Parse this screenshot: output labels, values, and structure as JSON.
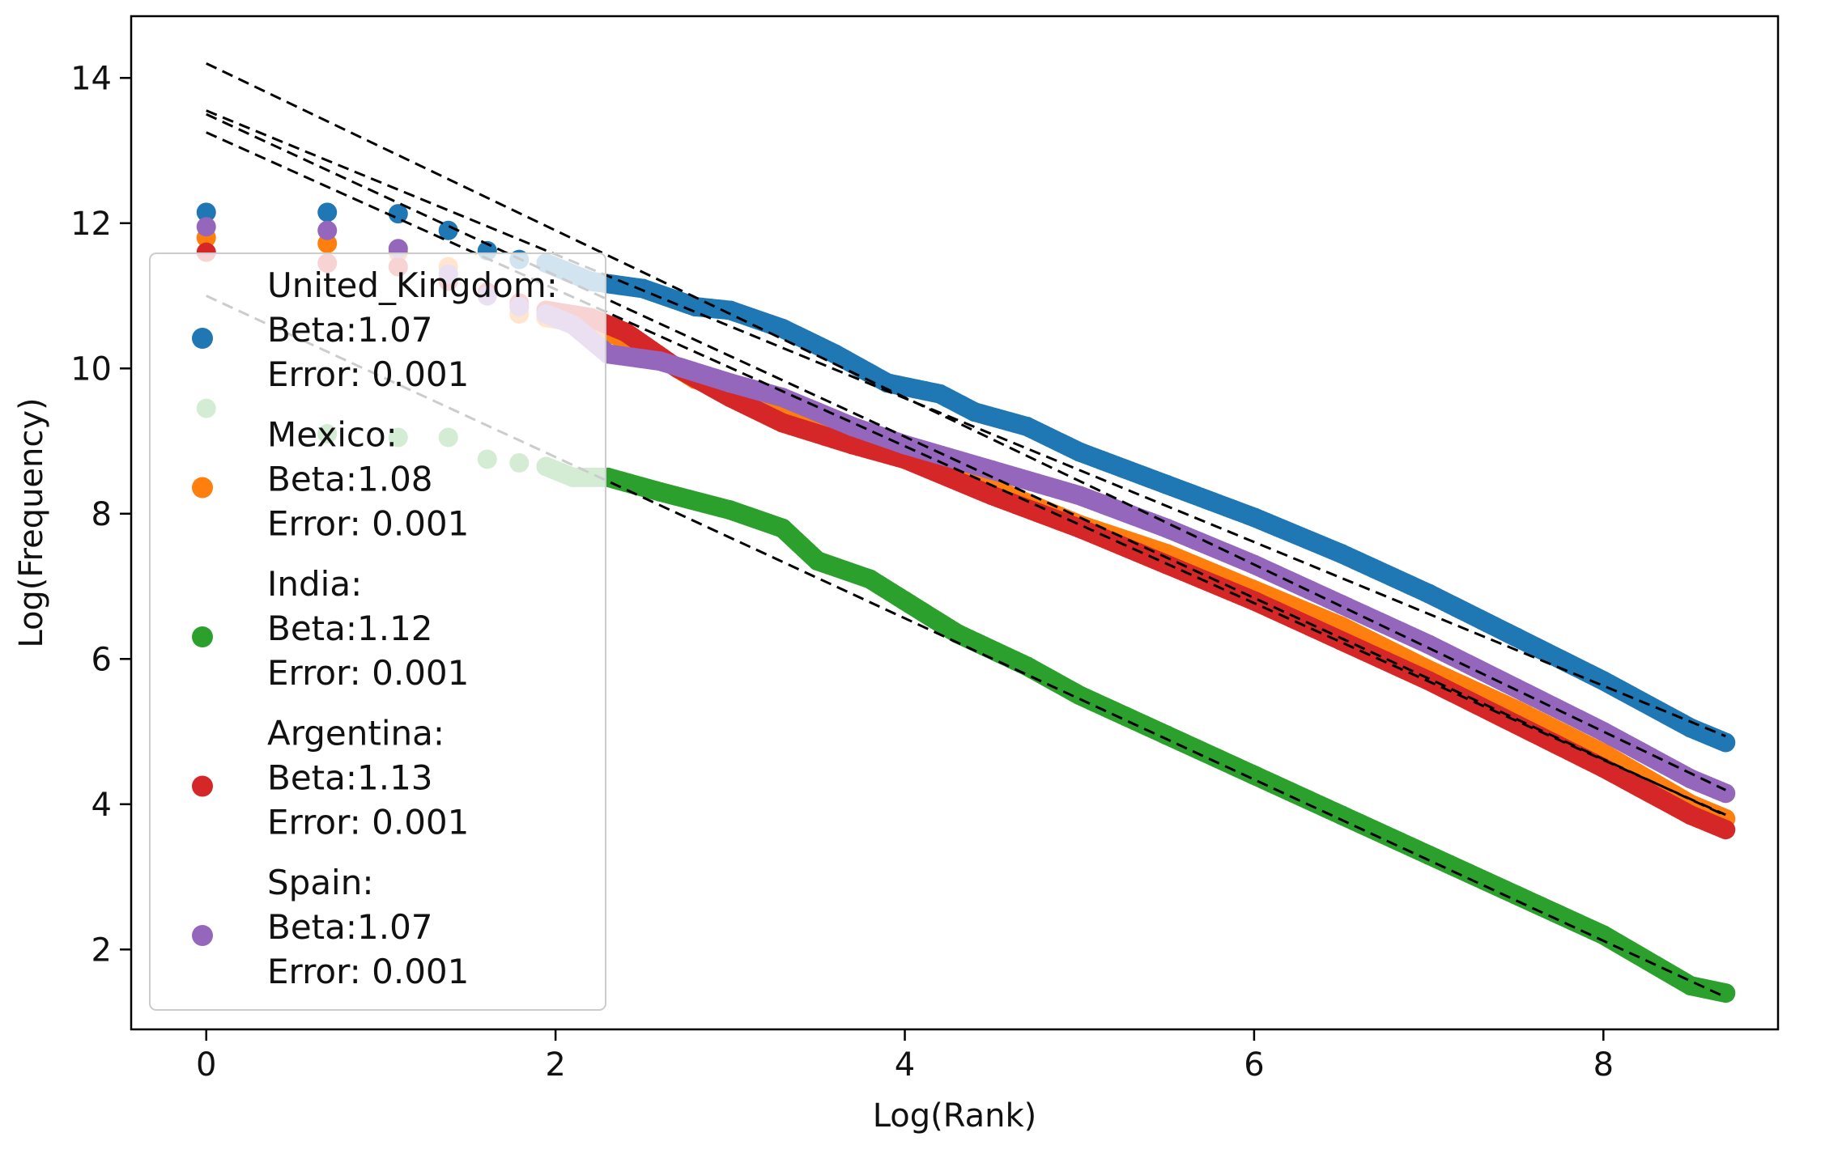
{
  "chart_data": {
    "type": "scatter",
    "title": "",
    "xlabel": "Log(Rank)",
    "ylabel": "Log(Frequency)",
    "xlim": [
      -0.43,
      9.0
    ],
    "ylim": [
      0.9,
      14.85
    ],
    "xticks": [
      0,
      2,
      4,
      6,
      8
    ],
    "yticks": [
      2,
      4,
      6,
      8,
      10,
      12,
      14
    ],
    "grid": false,
    "legend_position": "upper-left",
    "series": [
      {
        "name": "United_Kingdom",
        "color": "#1f77b4",
        "beta_label": "Beta:1.07",
        "error_label": "Error: 0.001",
        "fit": {
          "intercept": 13.55,
          "slope": -0.99
        },
        "points": [
          [
            0,
            12.15
          ],
          [
            0.693,
            12.15
          ],
          [
            1.099,
            12.13
          ],
          [
            1.386,
            11.9
          ],
          [
            1.609,
            11.62
          ],
          [
            1.792,
            11.5
          ],
          [
            1.946,
            11.45
          ],
          [
            2.2,
            11.2
          ],
          [
            2.5,
            11.1
          ],
          [
            2.8,
            10.85
          ],
          [
            3.0,
            10.8
          ],
          [
            3.3,
            10.55
          ],
          [
            3.6,
            10.2
          ],
          [
            3.9,
            9.8
          ],
          [
            4.2,
            9.65
          ],
          [
            4.4,
            9.4
          ],
          [
            4.7,
            9.2
          ],
          [
            5.0,
            8.85
          ],
          [
            5.5,
            8.4
          ],
          [
            6.0,
            7.95
          ],
          [
            6.5,
            7.45
          ],
          [
            7.0,
            6.9
          ],
          [
            7.5,
            6.3
          ],
          [
            8.0,
            5.7
          ],
          [
            8.5,
            5.05
          ],
          [
            8.7,
            4.85
          ]
        ]
      },
      {
        "name": "Mexico",
        "color": "#ff7f0e",
        "beta_label": "Beta:1.08",
        "error_label": "Error: 0.001",
        "fit": {
          "intercept": 13.5,
          "slope": -1.11
        },
        "points": [
          [
            0,
            11.8
          ],
          [
            0.693,
            11.72
          ],
          [
            1.099,
            11.6
          ],
          [
            1.386,
            11.4
          ],
          [
            1.609,
            11.0
          ],
          [
            1.792,
            10.75
          ],
          [
            1.946,
            10.7
          ],
          [
            2.2,
            10.6
          ],
          [
            2.5,
            10.3
          ],
          [
            2.8,
            9.85
          ],
          [
            3.0,
            9.75
          ],
          [
            3.3,
            9.5
          ],
          [
            3.6,
            9.15
          ],
          [
            4.0,
            8.75
          ],
          [
            4.5,
            8.35
          ],
          [
            5.0,
            7.85
          ],
          [
            5.5,
            7.45
          ],
          [
            6.0,
            6.95
          ],
          [
            6.5,
            6.45
          ],
          [
            7.0,
            5.85
          ],
          [
            7.5,
            5.3
          ],
          [
            8.0,
            4.7
          ],
          [
            8.5,
            4.0
          ],
          [
            8.7,
            3.8
          ]
        ]
      },
      {
        "name": "India",
        "color": "#2ca02c",
        "beta_label": "Beta:1.12",
        "error_label": "Error: 0.001",
        "fit": {
          "intercept": 11.0,
          "slope": -1.11
        },
        "points": [
          [
            0,
            9.45
          ],
          [
            0.693,
            9.1
          ],
          [
            1.099,
            9.05
          ],
          [
            1.386,
            9.05
          ],
          [
            1.609,
            8.75
          ],
          [
            1.792,
            8.7
          ],
          [
            1.946,
            8.65
          ],
          [
            2.1,
            8.5
          ],
          [
            2.3,
            8.5
          ],
          [
            2.6,
            8.3
          ],
          [
            3.0,
            8.05
          ],
          [
            3.3,
            7.8
          ],
          [
            3.5,
            7.35
          ],
          [
            3.8,
            7.1
          ],
          [
            4.0,
            6.8
          ],
          [
            4.3,
            6.35
          ],
          [
            4.7,
            5.9
          ],
          [
            5.0,
            5.5
          ],
          [
            5.5,
            4.95
          ],
          [
            6.0,
            4.4
          ],
          [
            6.5,
            3.85
          ],
          [
            7.0,
            3.3
          ],
          [
            7.5,
            2.75
          ],
          [
            8.0,
            2.2
          ],
          [
            8.5,
            1.5
          ],
          [
            8.7,
            1.4
          ]
        ]
      },
      {
        "name": "Argentina",
        "color": "#d62728",
        "beta_label": "Beta:1.13",
        "error_label": "Error: 0.001",
        "fit": {
          "intercept": 13.25,
          "slope": -1.08
        },
        "points": [
          [
            0,
            11.6
          ],
          [
            0.693,
            11.45
          ],
          [
            1.099,
            11.4
          ],
          [
            1.386,
            11.2
          ],
          [
            1.609,
            11.05
          ],
          [
            1.792,
            10.9
          ],
          [
            1.946,
            10.8
          ],
          [
            2.2,
            10.7
          ],
          [
            2.4,
            10.5
          ],
          [
            2.7,
            10.0
          ],
          [
            3.0,
            9.6
          ],
          [
            3.3,
            9.25
          ],
          [
            3.7,
            8.95
          ],
          [
            4.0,
            8.75
          ],
          [
            4.5,
            8.25
          ],
          [
            5.0,
            7.8
          ],
          [
            5.5,
            7.3
          ],
          [
            6.0,
            6.8
          ],
          [
            6.5,
            6.25
          ],
          [
            7.0,
            5.7
          ],
          [
            7.5,
            5.1
          ],
          [
            8.0,
            4.5
          ],
          [
            8.5,
            3.85
          ],
          [
            8.7,
            3.65
          ]
        ]
      },
      {
        "name": "Spain",
        "color": "#9467bd",
        "beta_label": "Beta:1.07",
        "error_label": "Error: 0.001",
        "fit": {
          "intercept": 14.2,
          "slope": -1.15
        },
        "points": [
          [
            0,
            11.95
          ],
          [
            0.693,
            11.9
          ],
          [
            1.099,
            11.65
          ],
          [
            1.386,
            11.3
          ],
          [
            1.609,
            11.0
          ],
          [
            1.792,
            10.85
          ],
          [
            1.946,
            10.75
          ],
          [
            2.1,
            10.6
          ],
          [
            2.3,
            10.2
          ],
          [
            2.6,
            10.1
          ],
          [
            3.0,
            9.8
          ],
          [
            3.3,
            9.6
          ],
          [
            3.7,
            9.2
          ],
          [
            4.0,
            8.95
          ],
          [
            4.5,
            8.6
          ],
          [
            5.0,
            8.25
          ],
          [
            5.5,
            7.8
          ],
          [
            6.0,
            7.3
          ],
          [
            6.5,
            6.75
          ],
          [
            7.0,
            6.2
          ],
          [
            7.5,
            5.6
          ],
          [
            8.0,
            5.0
          ],
          [
            8.5,
            4.35
          ],
          [
            8.7,
            4.15
          ]
        ]
      }
    ]
  }
}
